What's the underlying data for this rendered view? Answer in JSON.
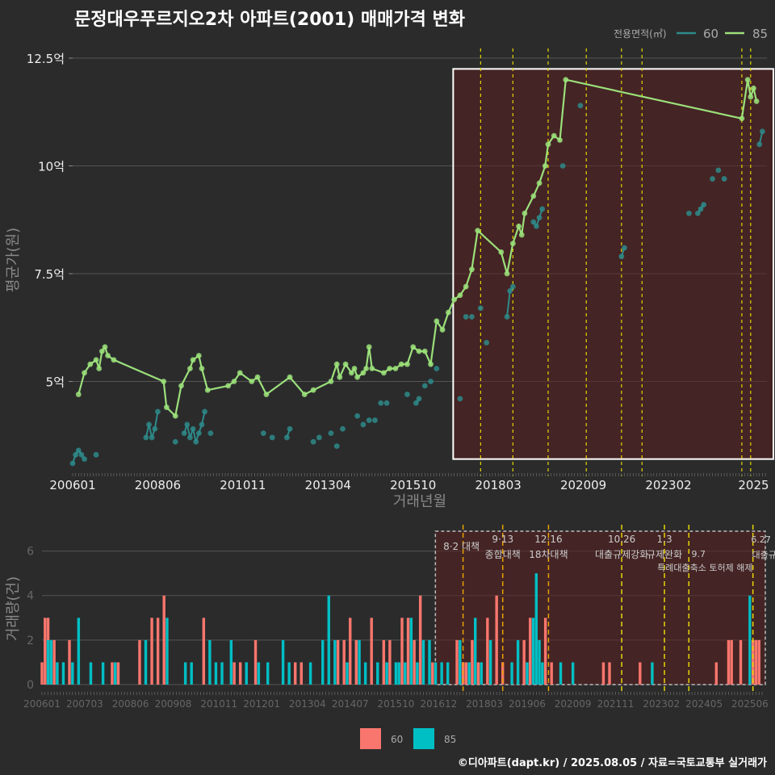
{
  "title": "문정대우푸르지오2차 아파트(2001) 매매가격 변화",
  "footer": "©디아파트(dapt.kr) / 2025.08.05 / 자료=국토교통부 실거래가",
  "colors": {
    "s60": "#2e8a8a",
    "s85": "#9be07a",
    "bar60": "#f8766d",
    "bar85": "#00bfc4",
    "policy": "#e6d600",
    "policyBottom": "#e6a100",
    "box": "#ffffff",
    "shade": "#5a1f1f"
  },
  "chart_data": [
    {
      "type": "line",
      "title": "문정대우푸르지오2차 아파트(2001) 매매가격 변화",
      "xlabel": "거래년월",
      "ylabel": "평균가(원)",
      "legend_title": "전용면적(㎡)",
      "legend": [
        "60",
        "85"
      ],
      "legend_position": "top-right",
      "x_ticks": [
        "200601",
        "200806",
        "201011",
        "201304",
        "201510",
        "201803",
        "202009",
        "202302",
        "2025"
      ],
      "y_ticks": [
        "5억",
        "7.5억",
        "10억",
        "12.5억"
      ],
      "ylim": [
        3.0,
        12.6
      ],
      "x_range_month_index": [
        0,
        236
      ],
      "policy_month_index": [
        91,
        100,
        110,
        160,
        166,
        172
      ],
      "highlight_months": [
        128,
        236
      ],
      "highlight_value_range": [
        3.2,
        12.25
      ],
      "series": [
        {
          "name": "60",
          "unit": "억",
          "points": [
            [
              0,
              3.1
            ],
            [
              1,
              3.3
            ],
            [
              2,
              3.4
            ],
            [
              3,
              3.3
            ],
            [
              4,
              3.2
            ],
            [
              8,
              3.3
            ],
            [
              25,
              3.7
            ],
            [
              26,
              4.0
            ],
            [
              27,
              3.7
            ],
            [
              28,
              3.9
            ],
            [
              29,
              4.3
            ],
            [
              35,
              3.6
            ],
            [
              38,
              3.8
            ],
            [
              39,
              4.0
            ],
            [
              40,
              3.7
            ],
            [
              41,
              3.9
            ],
            [
              42,
              3.6
            ],
            [
              43,
              3.8
            ],
            [
              44,
              4.0
            ],
            [
              45,
              4.3
            ],
            [
              47,
              3.8
            ],
            [
              65,
              3.8
            ],
            [
              68,
              3.7
            ],
            [
              73,
              3.7
            ],
            [
              74,
              3.9
            ],
            [
              82,
              3.6
            ],
            [
              84,
              3.7
            ],
            [
              88,
              3.8
            ],
            [
              90,
              3.5
            ],
            [
              92,
              3.9
            ],
            [
              97,
              4.2
            ],
            [
              99,
              4.0
            ],
            [
              101,
              4.1
            ],
            [
              103,
              4.1
            ],
            [
              105,
              4.5
            ],
            [
              107,
              4.5
            ],
            [
              114,
              4.7
            ],
            [
              117,
              4.5
            ],
            [
              118,
              4.6
            ],
            [
              120,
              4.9
            ],
            [
              122,
              5.0
            ],
            [
              124,
              5.3
            ],
            [
              132,
              4.6
            ],
            [
              134,
              6.5
            ],
            [
              136,
              6.5
            ],
            [
              139,
              6.7
            ],
            [
              141,
              5.9
            ],
            [
              148,
              6.5
            ],
            [
              149,
              7.1
            ],
            [
              150,
              7.2
            ],
            [
              157,
              8.7
            ],
            [
              158,
              8.6
            ],
            [
              159,
              8.8
            ],
            [
              160,
              9.0
            ],
            [
              167,
              10.0
            ],
            [
              173,
              11.4
            ],
            [
              187,
              7.9
            ],
            [
              188,
              8.1
            ],
            [
              210,
              8.9
            ],
            [
              213,
              8.9
            ],
            [
              214,
              9.0
            ],
            [
              215,
              9.1
            ],
            [
              218,
              9.7
            ],
            [
              220,
              9.9
            ],
            [
              222,
              9.7
            ],
            [
              234,
              10.5
            ],
            [
              235,
              10.8
            ]
          ]
        },
        {
          "name": "85",
          "unit": "억",
          "points": [
            [
              2,
              4.7
            ],
            [
              4,
              5.2
            ],
            [
              6,
              5.4
            ],
            [
              8,
              5.5
            ],
            [
              9,
              5.3
            ],
            [
              10,
              5.7
            ],
            [
              11,
              5.8
            ],
            [
              12,
              5.6
            ],
            [
              14,
              5.5
            ],
            [
              31,
              5.0
            ],
            [
              32,
              4.4
            ],
            [
              35,
              4.2
            ],
            [
              37,
              4.9
            ],
            [
              40,
              5.3
            ],
            [
              41,
              5.5
            ],
            [
              43,
              5.6
            ],
            [
              44,
              5.3
            ],
            [
              46,
              4.8
            ],
            [
              53,
              4.9
            ],
            [
              55,
              5.0
            ],
            [
              57,
              5.2
            ],
            [
              61,
              5.0
            ],
            [
              63,
              5.1
            ],
            [
              66,
              4.7
            ],
            [
              74,
              5.1
            ],
            [
              79,
              4.7
            ],
            [
              82,
              4.8
            ],
            [
              88,
              5.0
            ],
            [
              90,
              5.4
            ],
            [
              91,
              5.1
            ],
            [
              93,
              5.4
            ],
            [
              95,
              5.2
            ],
            [
              96,
              5.3
            ],
            [
              97,
              5.1
            ],
            [
              99,
              5.2
            ],
            [
              100,
              5.3
            ],
            [
              101,
              5.8
            ],
            [
              102,
              5.3
            ],
            [
              106,
              5.2
            ],
            [
              108,
              5.3
            ],
            [
              110,
              5.3
            ],
            [
              112,
              5.4
            ],
            [
              114,
              5.4
            ],
            [
              116,
              5.8
            ],
            [
              118,
              5.7
            ],
            [
              120,
              5.7
            ],
            [
              122,
              5.4
            ],
            [
              124,
              6.4
            ],
            [
              126,
              6.2
            ],
            [
              128,
              6.6
            ],
            [
              130,
              6.9
            ],
            [
              132,
              7.0
            ],
            [
              134,
              7.2
            ],
            [
              136,
              7.6
            ],
            [
              138,
              8.5
            ],
            [
              146,
              8.0
            ],
            [
              148,
              7.5
            ],
            [
              150,
              8.2
            ],
            [
              152,
              8.6
            ],
            [
              153,
              8.4
            ],
            [
              154,
              8.9
            ],
            [
              157,
              9.3
            ],
            [
              159,
              9.6
            ],
            [
              161,
              10.0
            ],
            [
              162,
              10.5
            ],
            [
              164,
              10.7
            ],
            [
              166,
              10.6
            ],
            [
              168,
              12.0
            ],
            [
              228,
              11.1
            ],
            [
              230,
              12.0
            ],
            [
              231,
              11.6
            ],
            [
              232,
              11.8
            ],
            [
              233,
              11.5
            ]
          ]
        }
      ]
    },
    {
      "type": "bar",
      "title": "",
      "xlabel": "",
      "ylabel": "거래량(건)",
      "y_ticks": [
        "0",
        "2",
        "4",
        "6"
      ],
      "ylim": [
        0,
        7
      ],
      "x_ticks": [
        "200601",
        "200703",
        "200806",
        "200908",
        "201011",
        "201201",
        "201304",
        "201407",
        "201510",
        "201612",
        "201803",
        "201906",
        "202009",
        "202111",
        "202302",
        "202405",
        "202506"
      ],
      "legend": [
        "60",
        "85"
      ],
      "legend_position": "bottom",
      "highlight_months": [
        130,
        236
      ],
      "policy_events": [
        {
          "date": "8·2",
          "name": "대책",
          "month_index": 138
        },
        {
          "date": "9·13",
          "name": "종합대책",
          "month_index": 151
        },
        {
          "date": "12·16",
          "name": "18차대책",
          "month_index": 166
        },
        {
          "date": "10.26",
          "name": "대출규제강화",
          "month_index": 190
        },
        {
          "date": "1.3",
          "name": "규제완화",
          "month_index": 204
        },
        {
          "date": "9.7",
          "name": "특례대출축소 토허제 해제",
          "month_index": 212
        },
        {
          "date": "6.27",
          "name": "대출규",
          "month_index": 233
        }
      ],
      "series": [
        {
          "name": "60",
          "monthly": [
            [
              0,
              1
            ],
            [
              1,
              3
            ],
            [
              2,
              3
            ],
            [
              4,
              2
            ],
            [
              9,
              2
            ],
            [
              23,
              1
            ],
            [
              24,
              1
            ],
            [
              25,
              1
            ],
            [
              32,
              2
            ],
            [
              36,
              3
            ],
            [
              38,
              3
            ],
            [
              40,
              4
            ],
            [
              53,
              3
            ],
            [
              63,
              1
            ],
            [
              65,
              1
            ],
            [
              70,
              2
            ],
            [
              83,
              1
            ],
            [
              85,
              1
            ],
            [
              97,
              2
            ],
            [
              99,
              2
            ],
            [
              101,
              3
            ],
            [
              103,
              2
            ],
            [
              108,
              3
            ],
            [
              112,
              2
            ],
            [
              114,
              2
            ],
            [
              118,
              3
            ],
            [
              120,
              3
            ],
            [
              122,
              2
            ],
            [
              124,
              4
            ],
            [
              128,
              1
            ],
            [
              136,
              2
            ],
            [
              138,
              1
            ],
            [
              139,
              1
            ],
            [
              141,
              2
            ],
            [
              143,
              1
            ],
            [
              146,
              3
            ],
            [
              149,
              4
            ],
            [
              151,
              1
            ],
            [
              158,
              2
            ],
            [
              160,
              3
            ],
            [
              165,
              3
            ],
            [
              167,
              1
            ],
            [
              184,
              1
            ],
            [
              186,
              1
            ],
            [
              196,
              1
            ],
            [
              221,
              1
            ],
            [
              225,
              2
            ],
            [
              226,
              2
            ],
            [
              229,
              2
            ],
            [
              233,
              2
            ],
            [
              234,
              2
            ],
            [
              235,
              2
            ]
          ]
        },
        {
          "name": "85",
          "monthly": [
            [
              2,
              2
            ],
            [
              3,
              2
            ],
            [
              5,
              1
            ],
            [
              7,
              1
            ],
            [
              10,
              1
            ],
            [
              12,
              3
            ],
            [
              16,
              1
            ],
            [
              20,
              1
            ],
            [
              24,
              1
            ],
            [
              34,
              2
            ],
            [
              41,
              3
            ],
            [
              47,
              1
            ],
            [
              49,
              1
            ],
            [
              55,
              2
            ],
            [
              57,
              1
            ],
            [
              59,
              1
            ],
            [
              62,
              2
            ],
            [
              67,
              1
            ],
            [
              71,
              1
            ],
            [
              74,
              1
            ],
            [
              79,
              2
            ],
            [
              81,
              1
            ],
            [
              88,
              1
            ],
            [
              92,
              2
            ],
            [
              94,
              4
            ],
            [
              96,
              2
            ],
            [
              100,
              1
            ],
            [
              104,
              2
            ],
            [
              106,
              1
            ],
            [
              110,
              1
            ],
            [
              113,
              1
            ],
            [
              116,
              1
            ],
            [
              117,
              1
            ],
            [
              119,
              1
            ],
            [
              121,
              3
            ],
            [
              123,
              1
            ],
            [
              125,
              2
            ],
            [
              127,
              2
            ],
            [
              129,
              1
            ],
            [
              131,
              1
            ],
            [
              133,
              1
            ],
            [
              137,
              2
            ],
            [
              140,
              1
            ],
            [
              142,
              3
            ],
            [
              144,
              1
            ],
            [
              147,
              2
            ],
            [
              154,
              1
            ],
            [
              156,
              2
            ],
            [
              159,
              1
            ],
            [
              161,
              3
            ],
            [
              162,
              5
            ],
            [
              163,
              2
            ],
            [
              164,
              1
            ],
            [
              170,
              1
            ],
            [
              174,
              1
            ],
            [
              200,
              1
            ],
            [
              232,
              4
            ]
          ]
        }
      ]
    }
  ]
}
